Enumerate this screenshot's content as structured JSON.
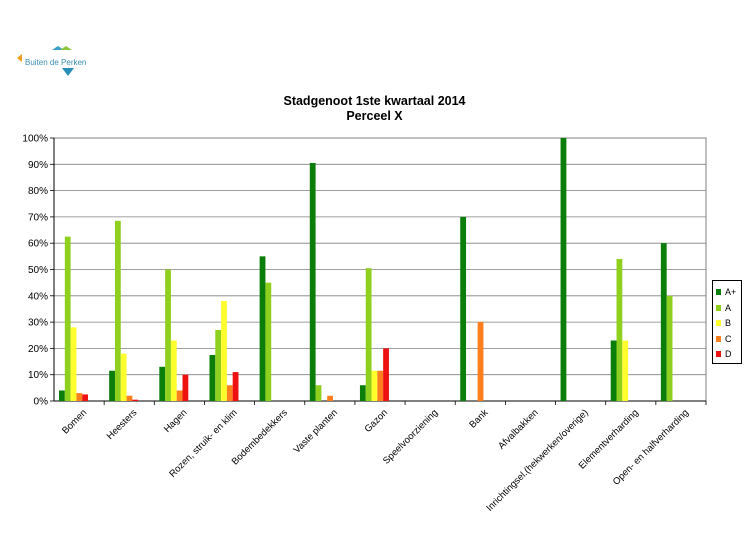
{
  "logo": {
    "text": "Buiten de Perken"
  },
  "chart_data": {
    "type": "bar",
    "title": "Stadgenoot 1ste kwartaal 2014",
    "subtitle": "Perceel  X",
    "xlabel": "",
    "ylabel": "",
    "ylim": [
      0,
      100
    ],
    "yticks": [
      "0%",
      "10%",
      "20%",
      "30%",
      "40%",
      "50%",
      "60%",
      "70%",
      "80%",
      "90%",
      "100%"
    ],
    "grid": true,
    "legend_position": "right",
    "categories": [
      "Bomen",
      "Heesters",
      "Hagen",
      "Rozen, struik- en klim",
      "Bodembedekkers",
      "Vaste planten",
      "Gazon",
      "Speelvoorziening",
      "Bank",
      "Afvalbakken",
      "Inrichtingsel.(hekwerken/overige)",
      "Elementverharding",
      "Open- en halfverharding"
    ],
    "series": [
      {
        "name": "A+",
        "color": "#0a7d0a",
        "values": [
          4,
          11.5,
          13,
          17.5,
          55,
          90.5,
          6,
          0,
          70,
          0,
          100,
          23,
          60
        ]
      },
      {
        "name": "A",
        "color": "#8fcf1e",
        "values": [
          62.5,
          68.5,
          50,
          27,
          45,
          6,
          50.5,
          0,
          0,
          0,
          0,
          54,
          40
        ]
      },
      {
        "name": "B",
        "color": "#ffff2e",
        "values": [
          28,
          18,
          23,
          38,
          0,
          0,
          11.5,
          0,
          0,
          0,
          0,
          23,
          0
        ]
      },
      {
        "name": "C",
        "color": "#ff7f1e",
        "values": [
          3,
          2,
          4,
          6,
          0,
          2,
          11.5,
          0,
          30,
          0,
          0,
          0,
          0
        ]
      },
      {
        "name": "D",
        "color": "#ee1111",
        "values": [
          2.5,
          0.5,
          10,
          11,
          0,
          0,
          20,
          0,
          0,
          0,
          0,
          0,
          0
        ]
      }
    ]
  }
}
